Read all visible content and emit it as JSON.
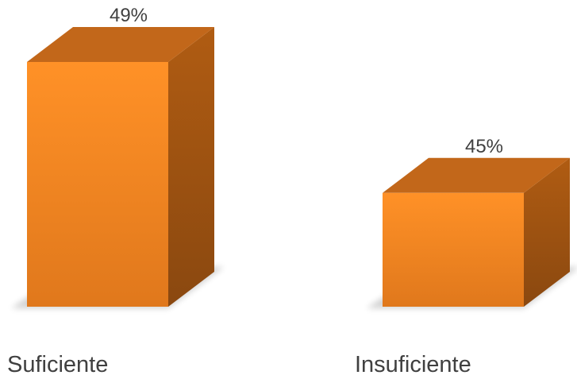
{
  "chart_data": {
    "type": "bar",
    "style": "3d-column",
    "categories": [
      "Suficiente",
      "Insuficiente"
    ],
    "values": [
      49,
      45
    ],
    "data_labels": [
      "49%",
      "45%"
    ],
    "title": "",
    "xlabel": "",
    "ylabel": "",
    "ylim": [
      44,
      49
    ],
    "grid": false,
    "legend": "none",
    "colors": {
      "bar_front_top": "#ff9127",
      "bar_front_bottom": "#e0781c",
      "bar_top": "#c2671a",
      "bar_side_top": "#b05c12",
      "bar_side_bottom": "#8a4810",
      "label_text": "#404040"
    }
  }
}
